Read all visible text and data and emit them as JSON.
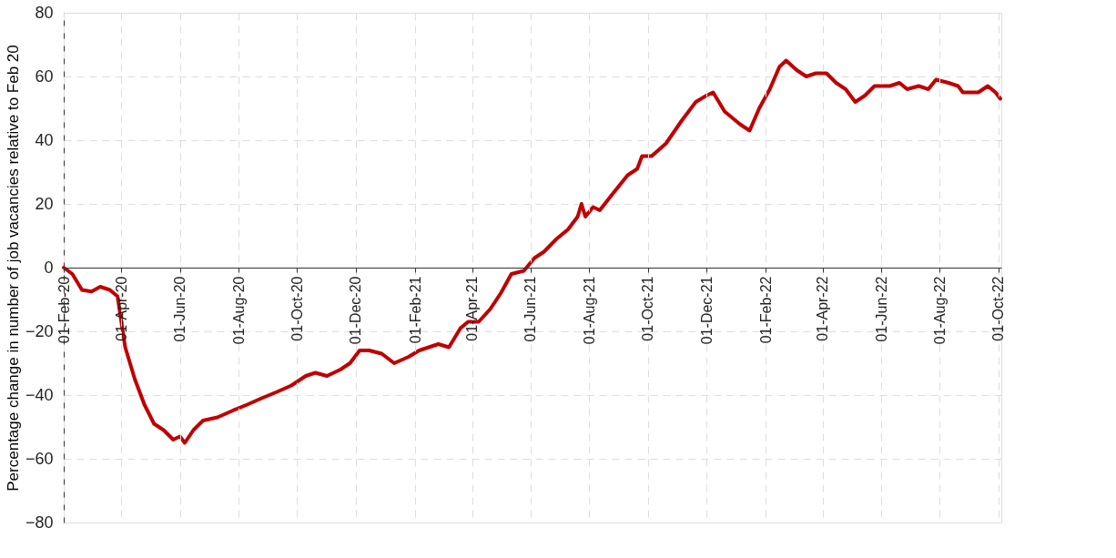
{
  "chart_data": {
    "type": "line",
    "ylabel": "Percentage change in number of job vacancies relative to Feb 20",
    "x": [
      "2020-02-01",
      "2020-02-10",
      "2020-02-20",
      "2020-03-01",
      "2020-03-10",
      "2020-03-20",
      "2020-03-28",
      "2020-04-05",
      "2020-04-15",
      "2020-04-25",
      "2020-05-05",
      "2020-05-15",
      "2020-05-25",
      "2020-06-01",
      "2020-06-06",
      "2020-06-15",
      "2020-06-25",
      "2020-07-10",
      "2020-07-25",
      "2020-08-10",
      "2020-08-25",
      "2020-09-10",
      "2020-09-25",
      "2020-10-10",
      "2020-10-20",
      "2020-11-01",
      "2020-11-15",
      "2020-11-25",
      "2020-12-05",
      "2020-12-15",
      "2020-12-28",
      "2021-01-10",
      "2021-01-25",
      "2021-02-05",
      "2021-02-15",
      "2021-02-25",
      "2021-03-08",
      "2021-03-20",
      "2021-03-28",
      "2021-04-08",
      "2021-04-20",
      "2021-05-01",
      "2021-05-12",
      "2021-05-25",
      "2021-06-05",
      "2021-06-15",
      "2021-06-28",
      "2021-07-10",
      "2021-07-20",
      "2021-07-24",
      "2021-07-28",
      "2021-08-05",
      "2021-08-12",
      "2021-08-25",
      "2021-09-10",
      "2021-09-20",
      "2021-09-25",
      "2021-10-05",
      "2021-10-20",
      "2021-11-05",
      "2021-11-20",
      "2021-12-01",
      "2021-12-08",
      "2021-12-20",
      "2022-01-05",
      "2022-01-15",
      "2022-01-25",
      "2022-02-05",
      "2022-02-15",
      "2022-02-22",
      "2022-03-05",
      "2022-03-15",
      "2022-03-25",
      "2022-04-05",
      "2022-04-15",
      "2022-04-25",
      "2022-05-05",
      "2022-05-15",
      "2022-05-25",
      "2022-06-10",
      "2022-06-20",
      "2022-06-28",
      "2022-07-10",
      "2022-07-20",
      "2022-07-28",
      "2022-08-10",
      "2022-08-20",
      "2022-08-25",
      "2022-09-10",
      "2022-09-20",
      "2022-09-28",
      "2022-10-03"
    ],
    "series": [
      {
        "color": "#c00000",
        "values": [
          0,
          -2,
          -7,
          -7.5,
          -6,
          -7,
          -9,
          -25,
          -35,
          -43,
          -49,
          -51,
          -54,
          -53,
          -55,
          -51,
          -48,
          -47,
          -45,
          -43,
          -41,
          -39,
          -37,
          -34,
          -33,
          -34,
          -32,
          -30,
          -26,
          -26,
          -27,
          -30,
          -28,
          -26,
          -25,
          -24,
          -25,
          -19,
          -17,
          -17,
          -13,
          -8,
          -2,
          -1,
          3,
          5,
          9,
          12,
          16,
          20,
          16,
          19,
          18,
          23,
          29,
          31,
          35,
          35,
          39,
          46,
          52,
          54,
          55,
          49,
          45,
          43,
          50,
          56,
          63,
          65,
          62,
          60,
          61,
          61,
          58,
          56,
          52,
          54,
          57,
          57,
          58,
          56,
          57,
          56,
          59,
          58,
          57,
          55,
          55,
          57,
          55,
          53
        ]
      }
    ],
    "xlim": [
      "2020-02-01",
      "2022-10-04"
    ],
    "xticks": [
      {
        "value": "2020-02-01",
        "label": "01-Feb-20"
      },
      {
        "value": "2020-04-01",
        "label": "01-Apr-20"
      },
      {
        "value": "2020-06-01",
        "label": "01-Jun-20"
      },
      {
        "value": "2020-08-01",
        "label": "01-Aug-20"
      },
      {
        "value": "2020-10-01",
        "label": "01-Oct-20"
      },
      {
        "value": "2020-12-01",
        "label": "01-Dec-20"
      },
      {
        "value": "2021-02-01",
        "label": "01-Feb-21"
      },
      {
        "value": "2021-04-01",
        "label": "01-Apr-21"
      },
      {
        "value": "2021-06-01",
        "label": "01-Jun-21"
      },
      {
        "value": "2021-08-01",
        "label": "01-Aug-21"
      },
      {
        "value": "2021-10-01",
        "label": "01-Oct-21"
      },
      {
        "value": "2021-12-01",
        "label": "01-Dec-21"
      },
      {
        "value": "2022-02-01",
        "label": "01-Feb-22"
      },
      {
        "value": "2022-04-01",
        "label": "01-Apr-22"
      },
      {
        "value": "2022-06-01",
        "label": "01-Jun-22"
      },
      {
        "value": "2022-08-01",
        "label": "01-Aug-22"
      },
      {
        "value": "2022-10-01",
        "label": "01-Oct-22"
      }
    ],
    "ylim": [
      -80,
      80
    ],
    "yticks": [
      -80,
      -60,
      -40,
      -20,
      0,
      20,
      40,
      60,
      80
    ],
    "grid": true,
    "marker": "none",
    "line_style": "solid"
  }
}
